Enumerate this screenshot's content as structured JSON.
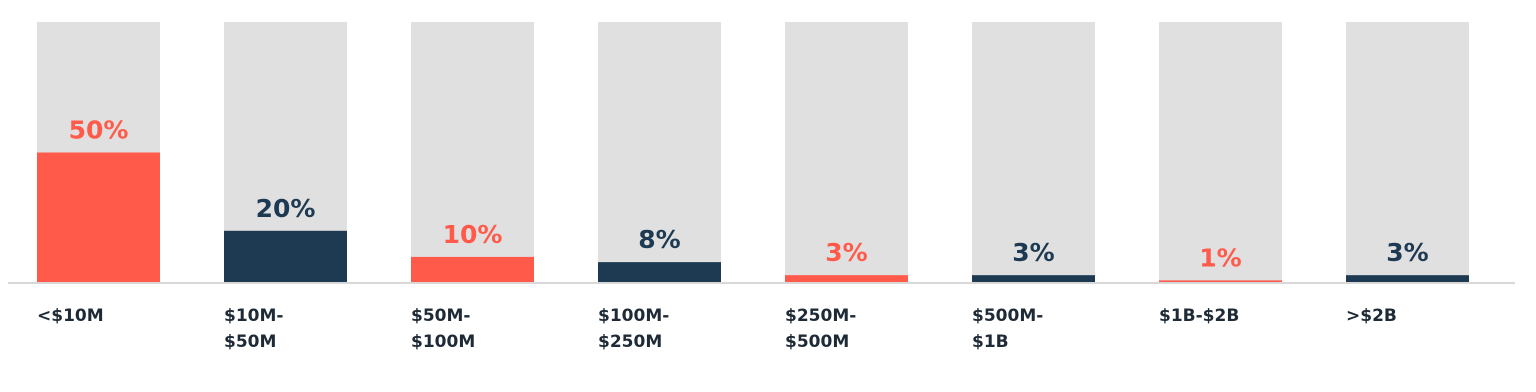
{
  "chart_data": {
    "type": "bar",
    "categories": [
      "<$10M",
      "$10M-\n$50M",
      "$50M-\n$100M",
      "$100M-\n$250M",
      "$250M-\n$500M",
      "$500M-\n$1B",
      "$1B-$2B",
      ">$2B"
    ],
    "values": [
      50,
      20,
      10,
      8,
      3,
      3,
      1,
      3
    ],
    "value_labels": [
      "50%",
      "20%",
      "10%",
      "8%",
      "3%",
      "3%",
      "1%",
      "3%"
    ],
    "colors": [
      "#ff5a4a",
      "#1e3a52",
      "#ff5a4a",
      "#1e3a52",
      "#ff5a4a",
      "#1e3a52",
      "#ff5a4a",
      "#1e3a52"
    ],
    "ylim": [
      0,
      100
    ]
  }
}
